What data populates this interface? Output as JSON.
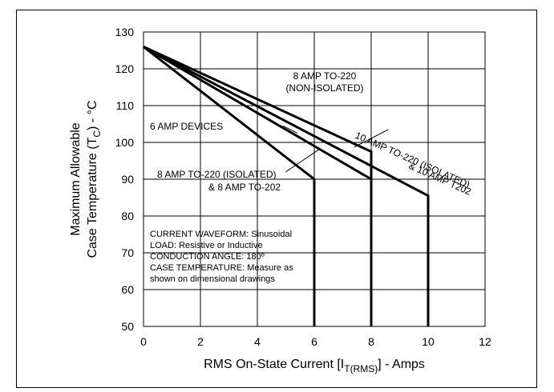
{
  "chart_data": {
    "type": "line",
    "title": "",
    "xlabel": {
      "main": "RMS On-State Current [I",
      "sub": "T(RMS)",
      "tail": "] - Amps"
    },
    "ylabel": {
      "line1": "Maximum Allowable",
      "line2_main": "Case Temperature (T",
      "line2_sub": "C",
      "line2_tail": ") - °C"
    },
    "xlim": [
      0,
      12
    ],
    "ylim": [
      50,
      130
    ],
    "x_ticks": [
      0,
      2,
      4,
      6,
      8,
      10,
      12
    ],
    "y_ticks": [
      50,
      60,
      70,
      80,
      90,
      100,
      110,
      120,
      130
    ],
    "grid": true,
    "series": [
      {
        "name": "6 AMP DEVICES",
        "x": [
          0,
          6,
          6
        ],
        "y": [
          126,
          90,
          50
        ]
      },
      {
        "name": "8 AMP TO-220 (ISOLATED) & 8 AMP TO-202",
        "x": [
          0,
          8,
          8
        ],
        "y": [
          126,
          90,
          50
        ]
      },
      {
        "name": "8 AMP TO-220 (NON-ISOLATED)",
        "x": [
          0,
          8,
          8
        ],
        "y": [
          126,
          97.5,
          50
        ]
      },
      {
        "name": "10 AMP TO-220 (ISOLATED) & 10 AMP T202",
        "x": [
          0,
          10,
          10
        ],
        "y": [
          126,
          85.5,
          50
        ]
      }
    ],
    "annotations": {
      "non_isolated_line1": "8 AMP TO-220",
      "non_isolated_line2": "(NON-ISOLATED)",
      "six_amp": "6 AMP DEVICES",
      "isolated_line1": "8 AMP TO-220 (ISOLATED)",
      "isolated_line2": "& 8 AMP TO-202",
      "ten_amp_line1": "10 AMP TO-220 (ISOLATED)",
      "ten_amp_line2": "& 10 AMP T202"
    },
    "notes": [
      "CURRENT WAVEFORM: Sinusoidal",
      "LOAD: Resistive or Inductive",
      "CONDUCTION ANGLE: 180º",
      "CASE TEMPERATURE: Measure as",
      "shown on dimensional drawings"
    ]
  }
}
